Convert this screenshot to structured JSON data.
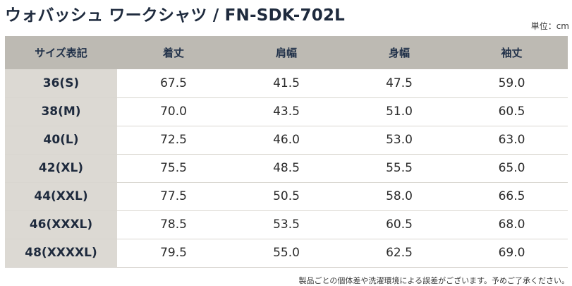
{
  "title": "ウォバッシュ ワークシャツ / FN-SDK-702L",
  "unit": "単位：cm",
  "table": {
    "headers": [
      "サイズ表記",
      "着丈",
      "肩幅",
      "身幅",
      "袖丈"
    ],
    "rows": [
      [
        "36(S)",
        "67.5",
        "41.5",
        "47.5",
        "59.0"
      ],
      [
        "38(M)",
        "70.0",
        "43.5",
        "51.0",
        "60.5"
      ],
      [
        "40(L)",
        "72.5",
        "46.0",
        "53.0",
        "63.0"
      ],
      [
        "42(XL)",
        "75.5",
        "48.5",
        "55.5",
        "65.0"
      ],
      [
        "44(XXL)",
        "77.5",
        "50.5",
        "58.0",
        "66.5"
      ],
      [
        "46(XXXL)",
        "78.5",
        "53.5",
        "60.5",
        "68.0"
      ],
      [
        "48(XXXXL)",
        "79.5",
        "55.0",
        "62.5",
        "69.0"
      ]
    ]
  },
  "note": "製品ごとの個体差や洗濯環境による誤差がございます。予めご了承ください。"
}
